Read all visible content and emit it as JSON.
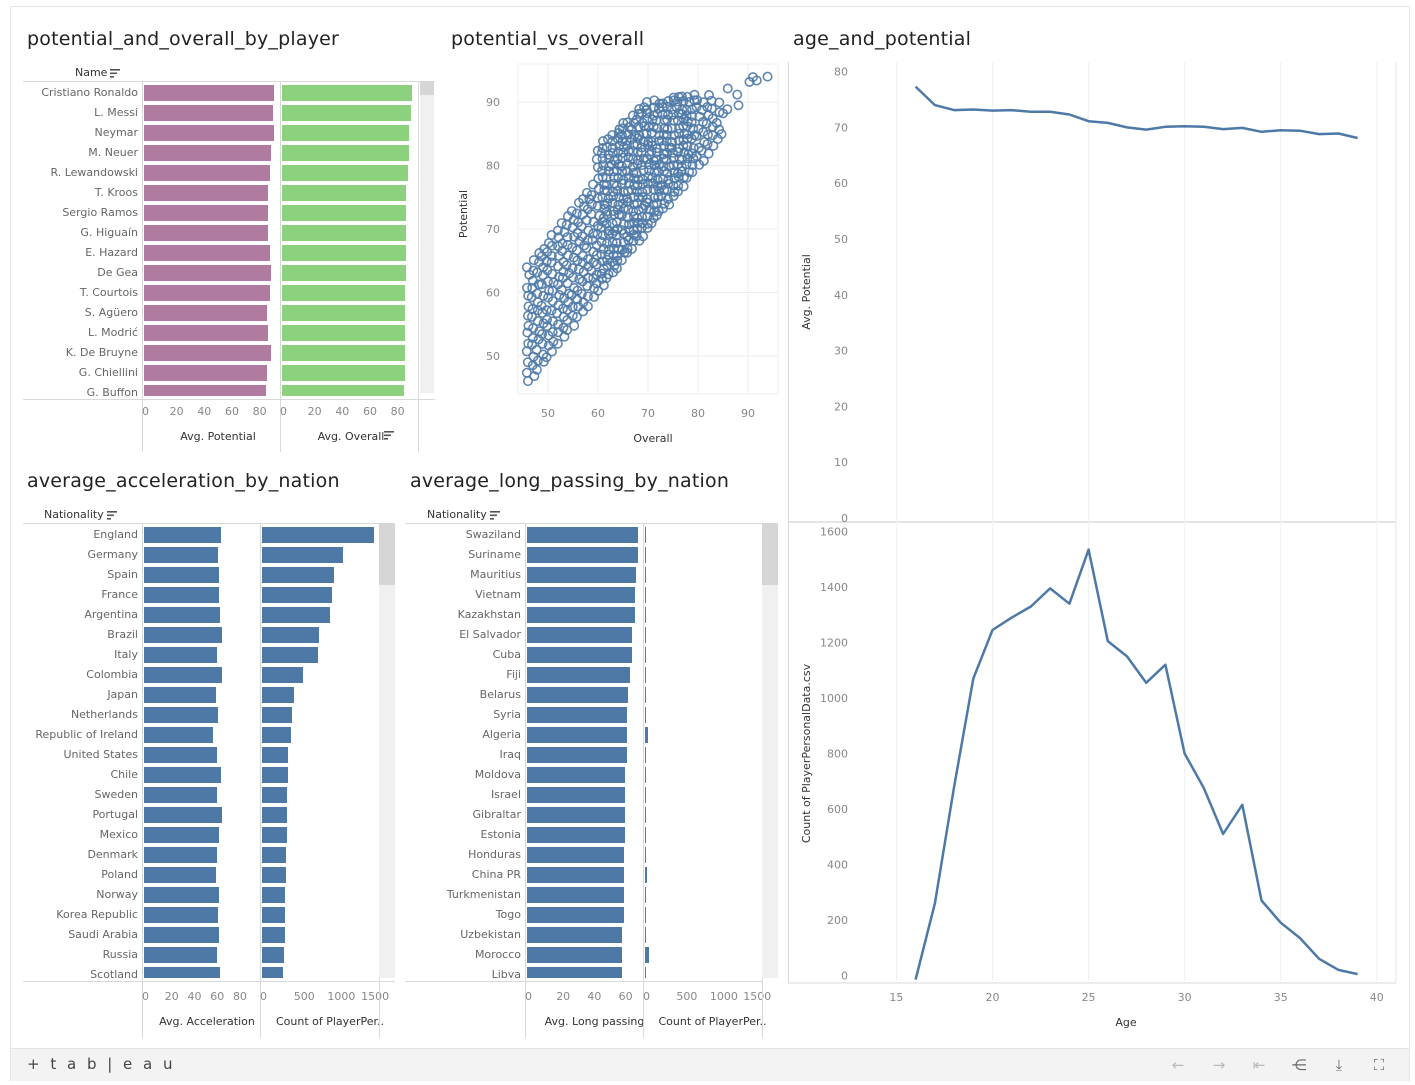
{
  "footer": {
    "logo_text": "+ t a b | e a u",
    "buttons": [
      {
        "name": "back-arrow-icon",
        "glyph": "←",
        "enabled": false
      },
      {
        "name": "forward-arrow-icon",
        "glyph": "→",
        "enabled": false
      },
      {
        "name": "revert-icon",
        "glyph": "⇤",
        "enabled": false
      },
      {
        "name": "share-icon",
        "glyph": "⋲",
        "enabled": true
      },
      {
        "name": "download-icon",
        "glyph": "⤓",
        "enabled": true
      },
      {
        "name": "fullscreen-icon",
        "glyph": "⛶",
        "enabled": true
      }
    ]
  },
  "colors": {
    "purple": "#b07aa1",
    "green": "#8cd17d",
    "blue": "#4e79a7",
    "grid": "#ececec"
  },
  "chart_data": [
    {
      "id": "potential_overall",
      "type": "bar",
      "title": "potential_and_overall_by_player",
      "row_header": "Name",
      "categories": [
        "Cristiano Ronaldo",
        "L. Messi",
        "Neymar",
        "M. Neuer",
        "R. Lewandowski",
        "T. Kroos",
        "Sergio Ramos",
        "G. Higuaín",
        "E. Hazard",
        "De Gea",
        "T. Courtois",
        "S. Agüero",
        "L. Modrić",
        "K. De Bruyne",
        "G. Chiellini",
        "G. Buffon"
      ],
      "series": [
        {
          "name": "Avg. Potential",
          "values": [
            94,
            93,
            94,
            92,
            91,
            90,
            90,
            90,
            91,
            92,
            91,
            89,
            90,
            92,
            89,
            88
          ],
          "xlim": [
            0,
            94
          ],
          "ticks": [
            0,
            20,
            40,
            60,
            80
          ]
        },
        {
          "name": "Avg. Overall",
          "values": [
            94,
            93,
            92,
            92,
            91,
            90,
            90,
            90,
            90,
            90,
            89,
            89,
            89,
            89,
            89,
            88
          ],
          "xlim": [
            0,
            94
          ],
          "ticks": [
            0,
            20,
            40,
            60,
            80
          ]
        }
      ]
    },
    {
      "id": "potential_vs_overall",
      "type": "scatter",
      "title": "potential_vs_overall",
      "xlabel": "Overall",
      "ylabel": "Potential",
      "xlim": [
        44,
        96
      ],
      "ylim": [
        44,
        96
      ],
      "xticks": [
        50,
        60,
        70,
        80,
        90
      ],
      "yticks": [
        50,
        60,
        70,
        80,
        90
      ]
    },
    {
      "id": "acceleration_by_nation",
      "type": "bar",
      "title": "average_acceleration_by_nation",
      "row_header": "Nationality",
      "categories": [
        "England",
        "Germany",
        "Spain",
        "France",
        "Argentina",
        "Brazil",
        "Italy",
        "Colombia",
        "Japan",
        "Netherlands",
        "Republic of Ireland",
        "United States",
        "Chile",
        "Sweden",
        "Portugal",
        "Mexico",
        "Denmark",
        "Poland",
        "Norway",
        "Korea Republic",
        "Saudi Arabia",
        "Russia",
        "Scotland"
      ],
      "series": [
        {
          "name": "Avg. Acceleration",
          "values": [
            68,
            65,
            66,
            66,
            67,
            69,
            64,
            69,
            63,
            65,
            61,
            64,
            68,
            64,
            69,
            66,
            64,
            63,
            66,
            65,
            66,
            64,
            67
          ],
          "xlim": [
            0,
            95
          ],
          "ticks": [
            0,
            20,
            40,
            60,
            80
          ]
        },
        {
          "name": "Count of PlayerPer..",
          "values": [
            1662,
            1195,
            1071,
            1035,
            1004,
            845,
            824,
            606,
            468,
            448,
            424,
            390,
            386,
            366,
            366,
            364,
            354,
            349,
            347,
            345,
            340,
            324,
            305
          ],
          "xlim": [
            0,
            1750
          ],
          "ticks": [
            0,
            500,
            1000,
            1500
          ]
        }
      ]
    },
    {
      "id": "long_passing_by_nation",
      "type": "bar",
      "title": "average_long_passing_by_nation",
      "row_header": "Nationality",
      "categories": [
        "Swaziland",
        "Suriname",
        "Mauritius",
        "Vietnam",
        "Kazakhstan",
        "El Salvador",
        "Cuba",
        "Fiji",
        "Belarus",
        "Syria",
        "Algeria",
        "Iraq",
        "Moldova",
        "Israel",
        "Gibraltar",
        "Estonia",
        "Honduras",
        "China PR",
        "Turkmenistan",
        "Togo",
        "Uzbekistan",
        "Morocco",
        "Libya"
      ],
      "series": [
        {
          "name": "Avg. Long passing",
          "values": [
            71,
            71,
            70,
            69,
            69,
            67,
            67,
            66,
            65,
            64,
            64,
            64,
            63,
            63,
            63,
            63,
            62,
            62,
            62,
            62,
            61,
            61,
            61
          ],
          "xlim": [
            0,
            75
          ],
          "ticks": [
            0,
            20,
            40,
            60
          ]
        },
        {
          "name": "Count of PlayerPer..",
          "values": [
            1,
            1,
            1,
            1,
            1,
            1,
            1,
            1,
            5,
            1,
            38,
            4,
            3,
            6,
            1,
            6,
            6,
            23,
            1,
            5,
            7,
            60,
            4
          ],
          "xlim": [
            0,
            1750
          ],
          "ticks": [
            0,
            500,
            1000,
            1500
          ]
        }
      ]
    },
    {
      "id": "age_and_potential",
      "type": "line",
      "title": "age_and_potential",
      "xlabel": "Age",
      "x": [
        16,
        17,
        18,
        19,
        20,
        21,
        22,
        23,
        24,
        25,
        26,
        27,
        28,
        29,
        30,
        31,
        32,
        33,
        34,
        35,
        36,
        37,
        38,
        39
      ],
      "xlim": [
        13,
        41
      ],
      "xticks": [
        15,
        20,
        25,
        30,
        35,
        40
      ],
      "series": [
        {
          "name": "Avg. Potential",
          "ylim": [
            0,
            81
          ],
          "yticks": [
            0,
            10,
            20,
            30,
            40,
            50,
            60,
            70,
            80
          ],
          "values": [
            77.3,
            74.0,
            73.1,
            73.2,
            73.0,
            73.1,
            72.8,
            72.8,
            72.3,
            71.1,
            70.8,
            70.0,
            69.6,
            70.1,
            70.2,
            70.1,
            69.7,
            69.9,
            69.2,
            69.5,
            69.4,
            68.8,
            68.9,
            68.1
          ]
        },
        {
          "name": "Count of PlayerPersonalData.csv",
          "ylim": [
            -20,
            1620
          ],
          "yticks": [
            0,
            200,
            400,
            600,
            800,
            1000,
            1200,
            1400,
            1600
          ],
          "values": [
            -15,
            260,
            680,
            1070,
            1245,
            1290,
            1330,
            1395,
            1340,
            1535,
            1205,
            1150,
            1055,
            1120,
            800,
            675,
            510,
            615,
            270,
            190,
            135,
            60,
            20,
            5
          ]
        }
      ]
    }
  ]
}
